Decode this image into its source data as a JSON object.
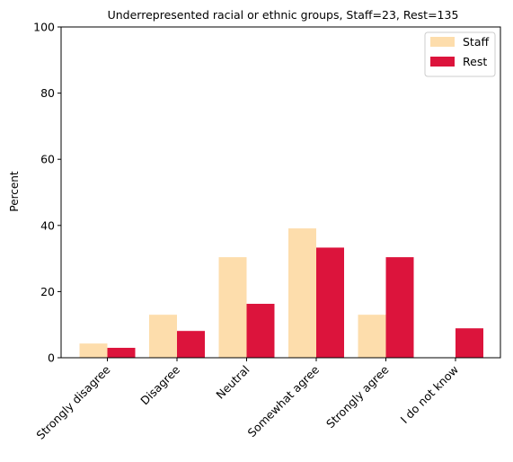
{
  "chart_data": {
    "type": "bar",
    "title": "Underrepresented racial or ethnic groups, Staff=23, Rest=135",
    "xlabel": "",
    "ylabel": "Percent",
    "ylim": [
      0,
      100
    ],
    "yticks": [
      0,
      20,
      40,
      60,
      80,
      100
    ],
    "categories": [
      "Strongly disagree",
      "Disagree",
      "Neutral",
      "Somewhat agree",
      "Strongly agree",
      "I do not know"
    ],
    "series": [
      {
        "name": "Staff",
        "color": "#fdddac",
        "values": [
          4.3,
          13.0,
          30.4,
          39.1,
          13.0,
          0.0
        ]
      },
      {
        "name": "Rest",
        "color": "#dc143c",
        "values": [
          3.0,
          8.1,
          16.3,
          33.3,
          30.4,
          8.9
        ]
      }
    ],
    "legend_position": "top-right",
    "grid": false
  }
}
